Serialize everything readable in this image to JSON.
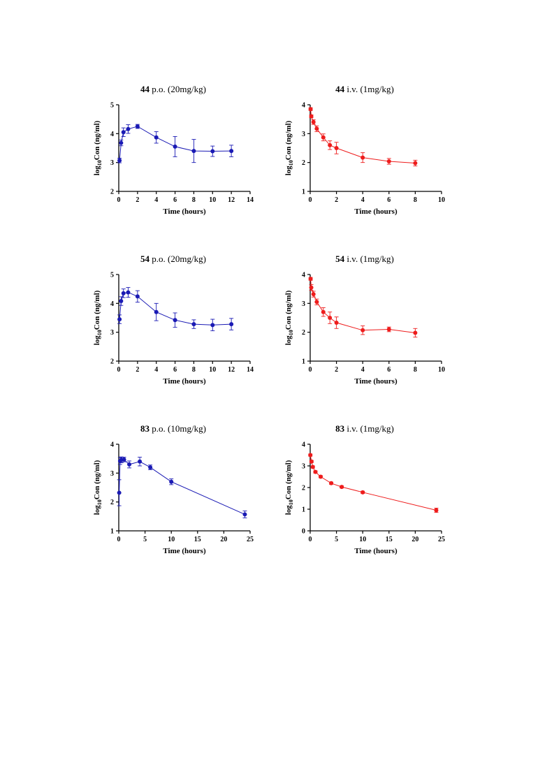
{
  "y_axis_label": "log",
  "y_axis_label_sub": "10",
  "y_axis_label_rest": "Con (ng/ml)",
  "x_axis_label": "Time (hours)",
  "chart_data": [
    {
      "type": "line",
      "compound": "44",
      "route": "p.o. (20mg/kg)",
      "color": "#1a1ab4",
      "xlabel": "Time (hours)",
      "ylabel": "log10Con (ng/ml)",
      "xlim": [
        0,
        14
      ],
      "ylim": [
        2,
        5
      ],
      "xticks": [
        0,
        2,
        4,
        6,
        8,
        10,
        12,
        14
      ],
      "yticks": [
        2,
        3,
        4,
        5
      ],
      "x": [
        0.083,
        0.25,
        0.5,
        1,
        2,
        4,
        6,
        8,
        10,
        12
      ],
      "y": [
        3.07,
        3.68,
        4.05,
        4.16,
        4.25,
        3.87,
        3.55,
        3.4,
        3.39,
        3.4
      ],
      "err": [
        0.08,
        0.1,
        0.15,
        0.15,
        0.07,
        0.2,
        0.35,
        0.4,
        0.18,
        0.2
      ]
    },
    {
      "type": "line",
      "compound": "44",
      "route": "i.v. (1mg/kg)",
      "color": "#ee1c1c",
      "xlabel": "Time (hours)",
      "ylabel": "log10Con (ng/ml)",
      "xlim": [
        0,
        10
      ],
      "ylim": [
        1,
        4
      ],
      "xticks": [
        0,
        2,
        4,
        6,
        8,
        10
      ],
      "yticks": [
        1,
        2,
        3,
        4
      ],
      "x": [
        0.033,
        0.083,
        0.25,
        0.5,
        1,
        1.5,
        2,
        4,
        6,
        8
      ],
      "y": [
        3.85,
        3.6,
        3.4,
        3.17,
        2.87,
        2.6,
        2.5,
        2.17,
        2.04,
        1.98
      ],
      "err": [
        0.05,
        0.05,
        0.08,
        0.1,
        0.12,
        0.15,
        0.2,
        0.17,
        0.1,
        0.1
      ]
    },
    {
      "type": "line",
      "compound": "54",
      "route": "p.o. (20mg/kg)",
      "color": "#1a1ab4",
      "xlabel": "Time (hours)",
      "ylabel": "log10Con (ng/ml)",
      "xlim": [
        0,
        14
      ],
      "ylim": [
        2,
        5
      ],
      "xticks": [
        0,
        2,
        4,
        6,
        8,
        10,
        12,
        14
      ],
      "yticks": [
        2,
        3,
        4,
        5
      ],
      "x": [
        0.083,
        0.25,
        0.5,
        1,
        2,
        4,
        6,
        8,
        10,
        12
      ],
      "y": [
        3.45,
        4.08,
        4.35,
        4.38,
        4.24,
        3.7,
        3.42,
        3.28,
        3.25,
        3.28
      ],
      "err": [
        0.15,
        0.15,
        0.15,
        0.17,
        0.2,
        0.3,
        0.25,
        0.15,
        0.2,
        0.2
      ]
    },
    {
      "type": "line",
      "compound": "54",
      "route": "i.v. (1mg/kg)",
      "color": "#ee1c1c",
      "xlabel": "Time (hours)",
      "ylabel": "log10Con (ng/ml)",
      "xlim": [
        0,
        10
      ],
      "ylim": [
        1,
        4
      ],
      "xticks": [
        0,
        2,
        4,
        6,
        8,
        10
      ],
      "yticks": [
        1,
        2,
        3,
        4
      ],
      "x": [
        0.033,
        0.083,
        0.25,
        0.5,
        1,
        1.5,
        2,
        4,
        6,
        8
      ],
      "y": [
        3.85,
        3.55,
        3.32,
        3.05,
        2.7,
        2.5,
        2.33,
        2.07,
        2.1,
        1.98
      ],
      "err": [
        0.05,
        0.1,
        0.1,
        0.1,
        0.15,
        0.2,
        0.2,
        0.15,
        0.08,
        0.15
      ]
    },
    {
      "type": "line",
      "compound": "83",
      "route": "p.o. (10mg/kg)",
      "color": "#1a1ab4",
      "xlabel": "Time (hours)",
      "ylabel": "log10Con (ng/ml)",
      "xlim": [
        0,
        25
      ],
      "ylim": [
        1,
        4
      ],
      "xticks": [
        0,
        5,
        10,
        15,
        20,
        25
      ],
      "yticks": [
        1,
        2,
        3,
        4
      ],
      "x": [
        0.083,
        0.25,
        0.5,
        1,
        2,
        4,
        6,
        10,
        24
      ],
      "y": [
        2.32,
        3.42,
        3.46,
        3.47,
        3.3,
        3.4,
        3.2,
        2.7,
        1.57
      ],
      "err": [
        0.45,
        0.12,
        0.1,
        0.08,
        0.12,
        0.15,
        0.08,
        0.1,
        0.12
      ]
    },
    {
      "type": "line",
      "compound": "83",
      "route": "i.v. (1mg/kg)",
      "color": "#ee1c1c",
      "xlabel": "Time (hours)",
      "ylabel": "log10Con (ng/ml)",
      "xlim": [
        0,
        25
      ],
      "ylim": [
        0,
        4
      ],
      "xticks": [
        0,
        5,
        10,
        15,
        20,
        25
      ],
      "yticks": [
        0,
        1,
        2,
        3,
        4
      ],
      "x": [
        0.033,
        0.25,
        0.5,
        1,
        2,
        4,
        6,
        10,
        24
      ],
      "y": [
        3.5,
        3.2,
        2.95,
        2.72,
        2.5,
        2.2,
        2.03,
        1.78,
        0.95
      ],
      "err": [
        0.05,
        0.05,
        0.05,
        0.05,
        0.05,
        0.05,
        0.05,
        0.05,
        0.1
      ]
    }
  ]
}
